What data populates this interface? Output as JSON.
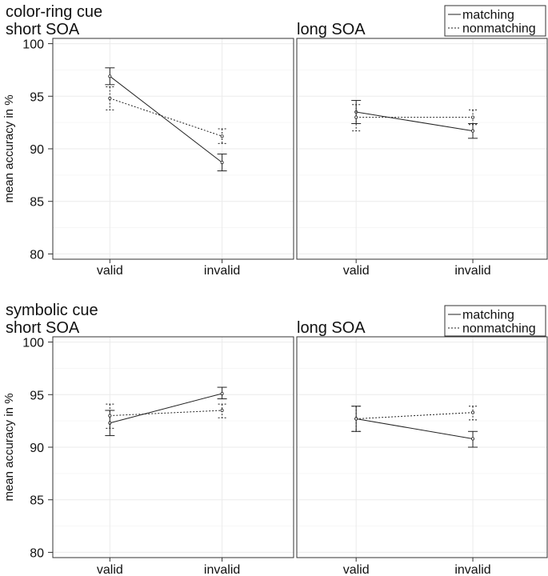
{
  "chart_data": [
    {
      "type": "line",
      "title": "color-ring cue",
      "ylabel": "mean accuracy in %",
      "ylim": [
        79.5,
        100.5
      ],
      "yticks": [
        80,
        85,
        90,
        95,
        100
      ],
      "categories": [
        "valid",
        "invalid"
      ],
      "legend": {
        "position": "top-right",
        "entries": [
          "matching",
          "nonmatching"
        ]
      },
      "panels": [
        {
          "title": "short SOA",
          "series": [
            {
              "name": "matching",
              "style": "solid",
              "values": [
                96.9,
                88.7
              ],
              "err_low": [
                96.1,
                87.9
              ],
              "err_high": [
                97.7,
                89.5
              ]
            },
            {
              "name": "nonmatching",
              "style": "dotted",
              "values": [
                94.8,
                91.2
              ],
              "err_low": [
                93.7,
                90.5
              ],
              "err_high": [
                95.9,
                91.9
              ]
            }
          ]
        },
        {
          "title": "long SOA",
          "series": [
            {
              "name": "matching",
              "style": "solid",
              "values": [
                93.5,
                91.7
              ],
              "err_low": [
                92.4,
                91.0
              ],
              "err_high": [
                94.6,
                92.4
              ]
            },
            {
              "name": "nonmatching",
              "style": "dotted",
              "values": [
                93.0,
                93.0
              ],
              "err_low": [
                91.7,
                92.3
              ],
              "err_high": [
                94.2,
                93.7
              ]
            }
          ]
        }
      ]
    },
    {
      "type": "line",
      "title": "symbolic cue",
      "ylabel": "mean accuracy in %",
      "ylim": [
        79.5,
        100.5
      ],
      "yticks": [
        80,
        85,
        90,
        95,
        100
      ],
      "categories": [
        "valid",
        "invalid"
      ],
      "legend": {
        "position": "top-right",
        "entries": [
          "matching",
          "nonmatching"
        ]
      },
      "panels": [
        {
          "title": "short SOA",
          "series": [
            {
              "name": "matching",
              "style": "solid",
              "values": [
                92.3,
                95.1
              ],
              "err_low": [
                91.1,
                94.6
              ],
              "err_high": [
                93.5,
                95.7
              ]
            },
            {
              "name": "nonmatching",
              "style": "dotted",
              "values": [
                93.0,
                93.5
              ],
              "err_low": [
                91.8,
                92.8
              ],
              "err_high": [
                94.1,
                94.1
              ]
            }
          ]
        },
        {
          "title": "long SOA",
          "series": [
            {
              "name": "matching",
              "style": "solid",
              "values": [
                92.7,
                90.8
              ],
              "err_low": [
                91.5,
                90.0
              ],
              "err_high": [
                93.9,
                91.5
              ]
            },
            {
              "name": "nonmatching",
              "style": "dotted",
              "values": [
                92.7,
                93.3
              ],
              "err_low": [
                91.5,
                92.6
              ],
              "err_high": [
                93.9,
                93.9
              ]
            }
          ]
        }
      ]
    }
  ]
}
